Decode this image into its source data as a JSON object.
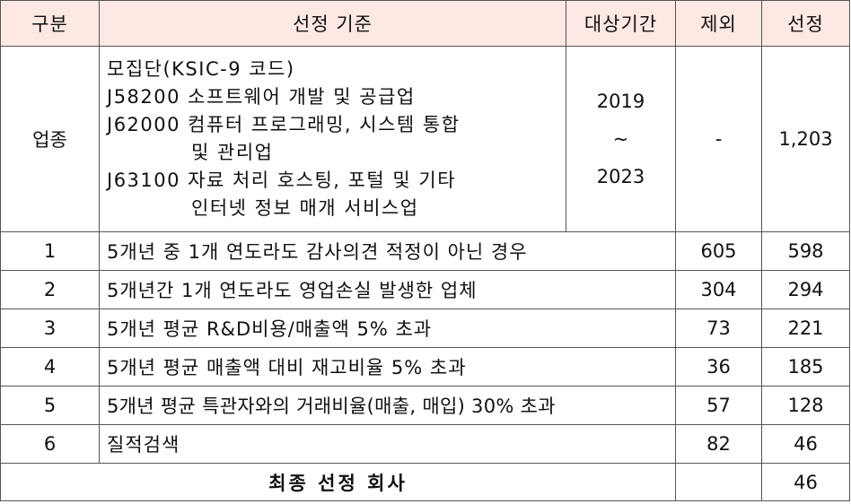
{
  "headers": {
    "category": "구분",
    "criteria": "선정 기준",
    "period": "대상기간",
    "excluded": "제외",
    "selected": "선정"
  },
  "industry": {
    "label": "업종",
    "lines": [
      "모집단(KSIC-9 코드)",
      "J58200 소프트웨어 개발 및 공급업",
      "J62000 컴퓨터 프로그래밍, 시스템 통합",
      "및 관리업",
      "J63100 자료 처리 호스팅, 포털 및 기타",
      "인터넷 정보 매개 서비스업"
    ],
    "period_start": "2019",
    "period_sep": "~",
    "period_end": "2023",
    "excluded": "-",
    "selected": "1,203"
  },
  "rows": [
    {
      "no": "1",
      "criteria": "5개년 중 1개 연도라도 감사의견 적정이 아닌 경우",
      "excluded": "605",
      "selected": "598"
    },
    {
      "no": "2",
      "criteria": "5개년간 1개 연도라도 영업손실 발생한 업체",
      "excluded": "304",
      "selected": "294"
    },
    {
      "no": "3",
      "criteria": "5개년 평균 R&D비용/매출액 5% 초과",
      "excluded": "73",
      "selected": "221"
    },
    {
      "no": "4",
      "criteria": "5개년 평균 매출액 대비 재고비율 5% 초과",
      "excluded": "36",
      "selected": "185"
    },
    {
      "no": "5",
      "criteria": "5개년 평균 특관자와의 거래비율(매출, 매입) 30% 초과",
      "excluded": "57",
      "selected": "128"
    },
    {
      "no": "6",
      "criteria": "질적검색",
      "excluded": "82",
      "selected": "46"
    }
  ],
  "final": {
    "label": "최종 선정 회사",
    "excluded": "",
    "selected": "46"
  },
  "colors": {
    "header_background": "#fde8e4",
    "border": "#555555"
  }
}
